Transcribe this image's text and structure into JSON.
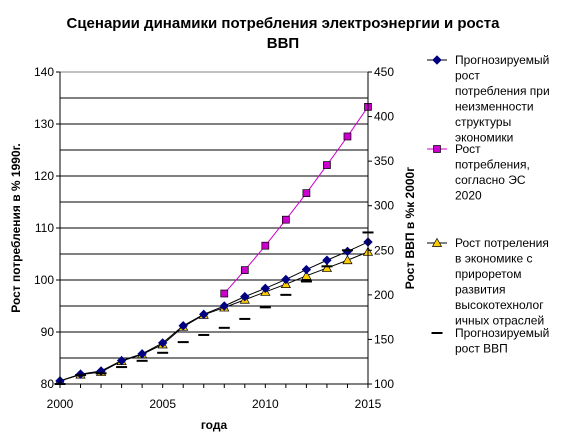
{
  "chart_data": {
    "type": "line",
    "title_lines": [
      "Сценарии динамики потребления электроэнергии и роста",
      "ВВП"
    ],
    "xlabel": "года",
    "ylabel_left": "Рост  потребления в %  1990г.",
    "ylabel_right": "Рост ВВП в %к 2000г",
    "x_ticks": [
      2000,
      2005,
      2010,
      2015
    ],
    "xlim": [
      2000,
      2015
    ],
    "ylim_left": [
      80,
      140
    ],
    "y_ticks_left": [
      80,
      90,
      100,
      110,
      120,
      130,
      140
    ],
    "ylim_right": [
      100,
      450
    ],
    "y_ticks_right": [
      100,
      150,
      200,
      250,
      300,
      350,
      400,
      450
    ],
    "grid": "horizontal",
    "legend_position": "right",
    "series": [
      {
        "name_lines": [
          "Прогнозируемый",
          "рост",
          "потребления при",
          "неизменности",
          "структуры",
          "экономики"
        ],
        "axis": "left",
        "marker": "diamond",
        "color": "#000080",
        "x": [
          2000,
          2001,
          2002,
          2003,
          2004,
          2005,
          2006,
          2007,
          2008,
          2009,
          2010,
          2011,
          2012,
          2013,
          2014,
          2015
        ],
        "y": [
          80.6,
          81.9,
          82.5,
          84.5,
          85.8,
          87.9,
          91.2,
          93.4,
          95.0,
          96.8,
          98.4,
          100.1,
          102.0,
          103.8,
          105.5,
          107.3
        ]
      },
      {
        "name_lines": [
          "Рост",
          "потребления,",
          "согласно  ЭС",
          "2020"
        ],
        "axis": "left",
        "marker": "square",
        "color": "#cc00cc",
        "x": [
          2008,
          2009,
          2010,
          2011,
          2012,
          2013,
          2014,
          2015
        ],
        "y": [
          97.4,
          101.9,
          106.6,
          111.6,
          116.7,
          122.1,
          127.6,
          133.3
        ]
      },
      {
        "name_lines": [
          "Рост потреления",
          "в экономике с",
          "прироретом",
          "развития",
          "высокотехнолог",
          "ичных отраслей"
        ],
        "axis": "left",
        "marker": "triangle",
        "color": "#ffcc00",
        "x": [
          2000,
          2001,
          2002,
          2003,
          2004,
          2005,
          2006,
          2007,
          2008,
          2009,
          2010,
          2011,
          2012,
          2013,
          2014,
          2015
        ],
        "y": [
          80.6,
          81.8,
          82.3,
          84.4,
          85.7,
          87.6,
          91.0,
          93.3,
          94.7,
          96.2,
          97.7,
          99.2,
          100.8,
          102.3,
          103.8,
          105.4
        ]
      },
      {
        "name_lines": [
          "Прогнозируемый",
          "рост ВВП"
        ],
        "axis": "right",
        "marker": "dash",
        "color": "#000000",
        "x": [
          2000,
          2001,
          2002,
          2003,
          2004,
          2005,
          2006,
          2007,
          2008,
          2009,
          2010,
          2011,
          2012,
          2013,
          2014,
          2015
        ],
        "y": [
          100,
          110,
          112,
          119,
          126,
          135,
          147,
          155,
          163,
          173,
          186,
          200,
          215,
          232,
          250,
          270
        ]
      }
    ]
  }
}
